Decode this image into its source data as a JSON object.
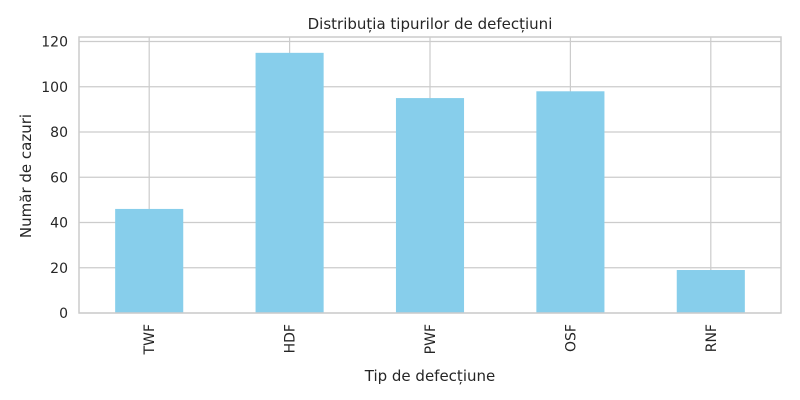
{
  "chart_data": {
    "type": "bar",
    "title": "Distribuția tipurilor de defecțiuni",
    "xlabel": "Tip de defecțiune",
    "ylabel": "Număr de cazuri",
    "categories": [
      "TWF",
      "HDF",
      "PWF",
      "OSF",
      "RNF"
    ],
    "values": [
      46,
      115,
      95,
      98,
      19
    ],
    "ylim": [
      0,
      122
    ],
    "yticks": [
      0,
      20,
      40,
      60,
      80,
      100,
      120
    ],
    "grid": true,
    "legend": "none",
    "colors": {
      "bar": "#87ceeb",
      "grid": "#cccccc",
      "frame": "#cccccc",
      "text": "#262626"
    }
  }
}
